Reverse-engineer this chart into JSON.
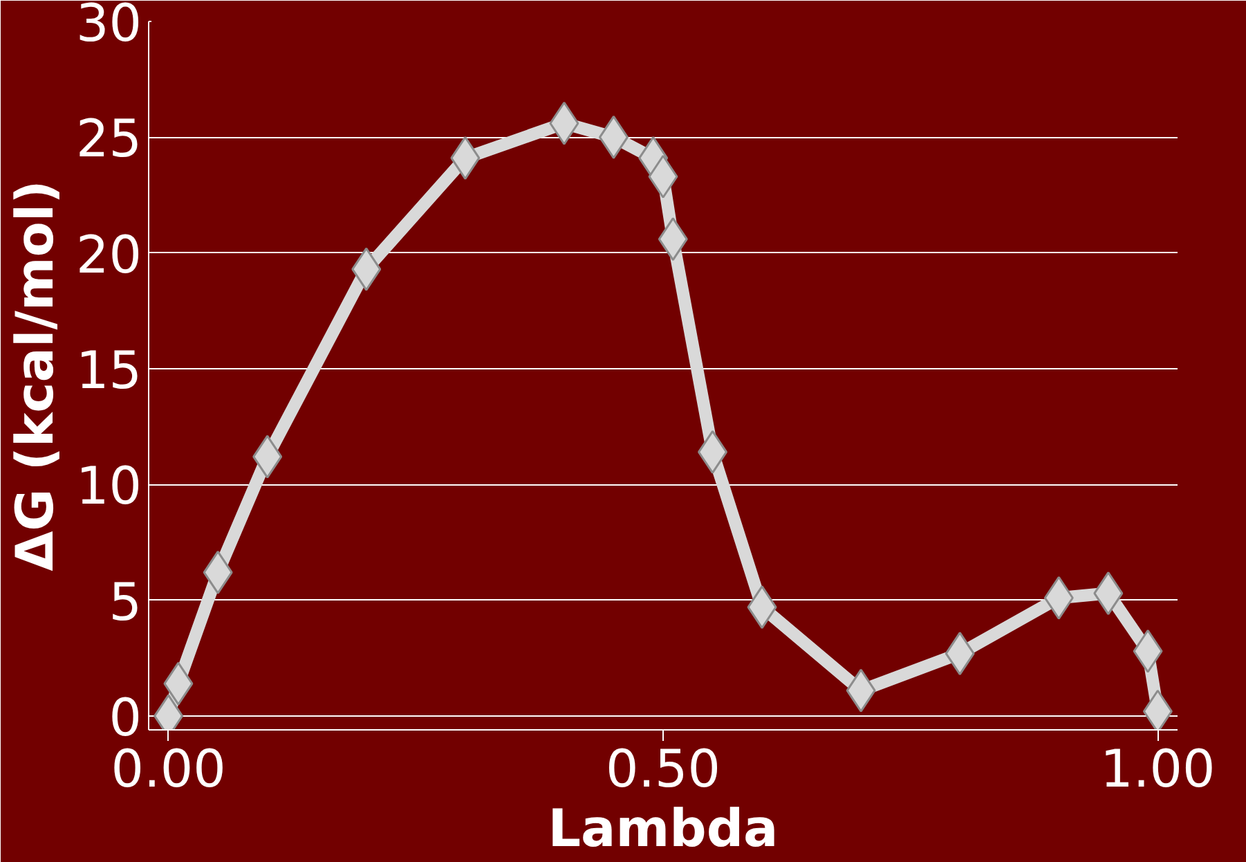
{
  "chart_data": {
    "type": "line",
    "xlabel": "Lambda",
    "ylabel": "ΔG (kcal/mol)",
    "series": [
      {
        "color": "#d9d9d9",
        "x": [
          0,
          0.01,
          0.05,
          0.1,
          0.2,
          0.3,
          0.4,
          0.45,
          0.49,
          0.5,
          0.51,
          0.55,
          0.6,
          0.7,
          0.8,
          0.9,
          0.95,
          0.99,
          1.0
        ],
        "values": [
          0,
          1.4,
          6.2,
          11.2,
          19.3,
          24.1,
          25.6,
          25.0,
          24.1,
          23.3,
          20.6,
          11.4,
          4.7,
          1.1,
          2.7,
          5.1,
          5.3,
          2.8,
          0.2
        ]
      }
    ],
    "xlim": [
      -0.02,
      1.02
    ],
    "xticks": [
      {
        "value": 0,
        "label": "0.00"
      },
      {
        "value": 0.5,
        "label": "0.50"
      },
      {
        "value": 1,
        "label": "1.00"
      }
    ],
    "ylim": [
      -0.6,
      30
    ],
    "yticks": [
      0,
      5,
      10,
      15,
      20,
      25,
      30
    ],
    "grid": "y",
    "marker": "diamond",
    "line_style": "solid"
  }
}
